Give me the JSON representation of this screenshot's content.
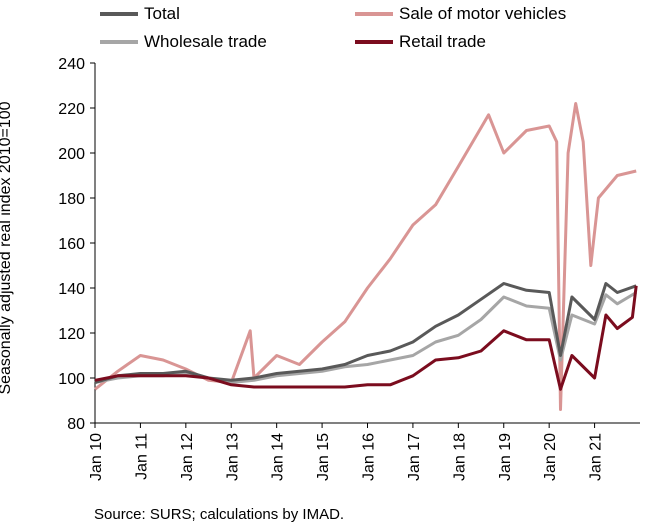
{
  "chart_data": {
    "type": "line",
    "ylabel": "Seasonally adjusted real index 2010=100",
    "ylim": [
      80,
      240
    ],
    "yticks": [
      80,
      100,
      120,
      140,
      160,
      180,
      200,
      220,
      240
    ],
    "xticks": [
      "Jan 10",
      "Jan 11",
      "Jan 12",
      "Jan 13",
      "Jan 14",
      "Jan 15",
      "Jan 16",
      "Jan 17",
      "Jan 18",
      "Jan 19",
      "Jan 20",
      "Jan 21"
    ],
    "x_start": "Jan 10",
    "grid": false,
    "legend_position": "top",
    "source": "Source: SURS; calculations by IMAD.",
    "series": [
      {
        "name": "Total",
        "color": "#595959",
        "values": [
          {
            "x": "Jan 10",
            "y": 98
          },
          {
            "x": "Jul 10",
            "y": 101
          },
          {
            "x": "Jan 11",
            "y": 102
          },
          {
            "x": "Jul 11",
            "y": 102
          },
          {
            "x": "Jan 12",
            "y": 103
          },
          {
            "x": "Jul 12",
            "y": 100
          },
          {
            "x": "Jan 13",
            "y": 99
          },
          {
            "x": "Jul 13",
            "y": 100
          },
          {
            "x": "Jan 14",
            "y": 102
          },
          {
            "x": "Jul 14",
            "y": 103
          },
          {
            "x": "Jan 15",
            "y": 104
          },
          {
            "x": "Jul 15",
            "y": 106
          },
          {
            "x": "Jan 16",
            "y": 110
          },
          {
            "x": "Jul 16",
            "y": 112
          },
          {
            "x": "Jan 17",
            "y": 116
          },
          {
            "x": "Jul 17",
            "y": 123
          },
          {
            "x": "Jan 18",
            "y": 128
          },
          {
            "x": "Jul 18",
            "y": 135
          },
          {
            "x": "Jan 19",
            "y": 142
          },
          {
            "x": "Jul 19",
            "y": 139
          },
          {
            "x": "Jan 20",
            "y": 138
          },
          {
            "x": "Apr 20",
            "y": 110
          },
          {
            "x": "Jul 20",
            "y": 136
          },
          {
            "x": "Jan 21",
            "y": 126
          },
          {
            "x": "Apr 21",
            "y": 142
          },
          {
            "x": "Jul 21",
            "y": 138
          },
          {
            "x": "Dec 21",
            "y": 141
          }
        ]
      },
      {
        "name": "Sale of motor vehicles",
        "color": "#d99594",
        "values": [
          {
            "x": "Jan 10",
            "y": 95
          },
          {
            "x": "Jul 10",
            "y": 103
          },
          {
            "x": "Jan 11",
            "y": 110
          },
          {
            "x": "Jul 11",
            "y": 108
          },
          {
            "x": "Jan 12",
            "y": 104
          },
          {
            "x": "Jul 12",
            "y": 99
          },
          {
            "x": "Jan 13",
            "y": 98
          },
          {
            "x": "Jun 13",
            "y": 121
          },
          {
            "x": "Jul 13",
            "y": 100
          },
          {
            "x": "Jan 14",
            "y": 110
          },
          {
            "x": "Jul 14",
            "y": 106
          },
          {
            "x": "Jan 15",
            "y": 116
          },
          {
            "x": "Jul 15",
            "y": 125
          },
          {
            "x": "Jan 16",
            "y": 140
          },
          {
            "x": "Jul 16",
            "y": 153
          },
          {
            "x": "Jan 17",
            "y": 168
          },
          {
            "x": "Jul 17",
            "y": 177
          },
          {
            "x": "Jan 18",
            "y": 194
          },
          {
            "x": "Sep 18",
            "y": 217
          },
          {
            "x": "Jan 19",
            "y": 200
          },
          {
            "x": "Jul 19",
            "y": 210
          },
          {
            "x": "Jan 20",
            "y": 212
          },
          {
            "x": "Mar 20",
            "y": 205
          },
          {
            "x": "Apr 20",
            "y": 86
          },
          {
            "x": "Jun 20",
            "y": 200
          },
          {
            "x": "Aug 20",
            "y": 222
          },
          {
            "x": "Oct 20",
            "y": 205
          },
          {
            "x": "Dec 20",
            "y": 150
          },
          {
            "x": "Feb 21",
            "y": 180
          },
          {
            "x": "Jul 21",
            "y": 190
          },
          {
            "x": "Dec 21",
            "y": 192
          }
        ]
      },
      {
        "name": "Wholesale trade",
        "color": "#a6a6a6",
        "values": [
          {
            "x": "Jan 10",
            "y": 98
          },
          {
            "x": "Jul 10",
            "y": 100
          },
          {
            "x": "Jan 11",
            "y": 101
          },
          {
            "x": "Jul 11",
            "y": 101
          },
          {
            "x": "Jan 12",
            "y": 102
          },
          {
            "x": "Jul 12",
            "y": 100
          },
          {
            "x": "Jan 13",
            "y": 98
          },
          {
            "x": "Jul 13",
            "y": 99
          },
          {
            "x": "Jan 14",
            "y": 101
          },
          {
            "x": "Jul 14",
            "y": 102
          },
          {
            "x": "Jan 15",
            "y": 103
          },
          {
            "x": "Jul 15",
            "y": 105
          },
          {
            "x": "Jan 16",
            "y": 106
          },
          {
            "x": "Jul 16",
            "y": 108
          },
          {
            "x": "Jan 17",
            "y": 110
          },
          {
            "x": "Jul 17",
            "y": 116
          },
          {
            "x": "Jan 18",
            "y": 119
          },
          {
            "x": "Jul 18",
            "y": 126
          },
          {
            "x": "Jan 19",
            "y": 136
          },
          {
            "x": "Jul 19",
            "y": 132
          },
          {
            "x": "Jan 20",
            "y": 131
          },
          {
            "x": "Apr 20",
            "y": 108
          },
          {
            "x": "Jul 20",
            "y": 128
          },
          {
            "x": "Jan 21",
            "y": 124
          },
          {
            "x": "Apr 21",
            "y": 137
          },
          {
            "x": "Jul 21",
            "y": 133
          },
          {
            "x": "Dec 21",
            "y": 138
          }
        ]
      },
      {
        "name": "Retail trade",
        "color": "#7b0c1e",
        "values": [
          {
            "x": "Jan 10",
            "y": 99
          },
          {
            "x": "Jul 10",
            "y": 101
          },
          {
            "x": "Jan 11",
            "y": 101
          },
          {
            "x": "Jul 11",
            "y": 101
          },
          {
            "x": "Jan 12",
            "y": 101
          },
          {
            "x": "Jul 12",
            "y": 100
          },
          {
            "x": "Jan 13",
            "y": 97
          },
          {
            "x": "Jul 13",
            "y": 96
          },
          {
            "x": "Jan 14",
            "y": 96
          },
          {
            "x": "Jul 14",
            "y": 96
          },
          {
            "x": "Jan 15",
            "y": 96
          },
          {
            "x": "Jul 15",
            "y": 96
          },
          {
            "x": "Jan 16",
            "y": 97
          },
          {
            "x": "Jul 16",
            "y": 97
          },
          {
            "x": "Jan 17",
            "y": 101
          },
          {
            "x": "Jul 17",
            "y": 108
          },
          {
            "x": "Jan 18",
            "y": 109
          },
          {
            "x": "Jul 18",
            "y": 112
          },
          {
            "x": "Jan 19",
            "y": 121
          },
          {
            "x": "Jul 19",
            "y": 117
          },
          {
            "x": "Jan 20",
            "y": 117
          },
          {
            "x": "Apr 20",
            "y": 95
          },
          {
            "x": "Jul 20",
            "y": 110
          },
          {
            "x": "Jan 21",
            "y": 100
          },
          {
            "x": "Apr 21",
            "y": 128
          },
          {
            "x": "Jul 21",
            "y": 122
          },
          {
            "x": "Nov 21",
            "y": 127
          },
          {
            "x": "Dec 21",
            "y": 141
          }
        ]
      }
    ]
  }
}
